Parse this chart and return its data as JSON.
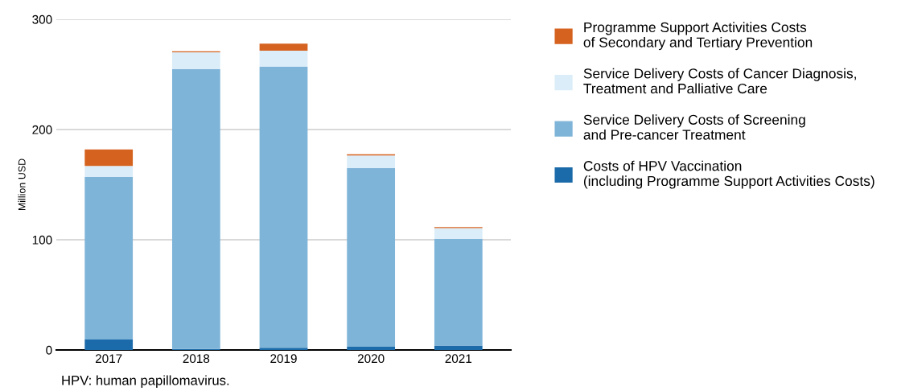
{
  "chart_data": {
    "type": "bar",
    "stacked": true,
    "categories": [
      "2017",
      "2018",
      "2019",
      "2020",
      "2021"
    ],
    "ylabel": "Million USD",
    "ylim": [
      0,
      300
    ],
    "yticks": [
      0,
      100,
      200,
      300
    ],
    "grid": "y",
    "legend": "right",
    "series": [
      {
        "name": "Costs of HPV Vaccination\n(including Programme Support Activities Costs)",
        "color": "#1b6aa9",
        "values": [
          9.5,
          1,
          2,
          3,
          4
        ]
      },
      {
        "name": "Service Delivery Costs of Screening\nand Pre-cancer Treatment",
        "color": "#7eb4d8",
        "values": [
          147.5,
          254,
          255,
          162,
          97
        ]
      },
      {
        "name": "Service Delivery Costs of Cancer Diagnosis,\nTreatment and Palliative Care",
        "color": "#dbedf8",
        "values": [
          10,
          15,
          14.5,
          11.5,
          9.5
        ]
      },
      {
        "name": "Programme Support Activities Costs\nof Secondary and Tertiary Prevention",
        "color": "#d5621f",
        "values": [
          15,
          1,
          6.5,
          1,
          1
        ]
      }
    ],
    "annotations": [
      "HPV: human papillomavirus."
    ]
  }
}
